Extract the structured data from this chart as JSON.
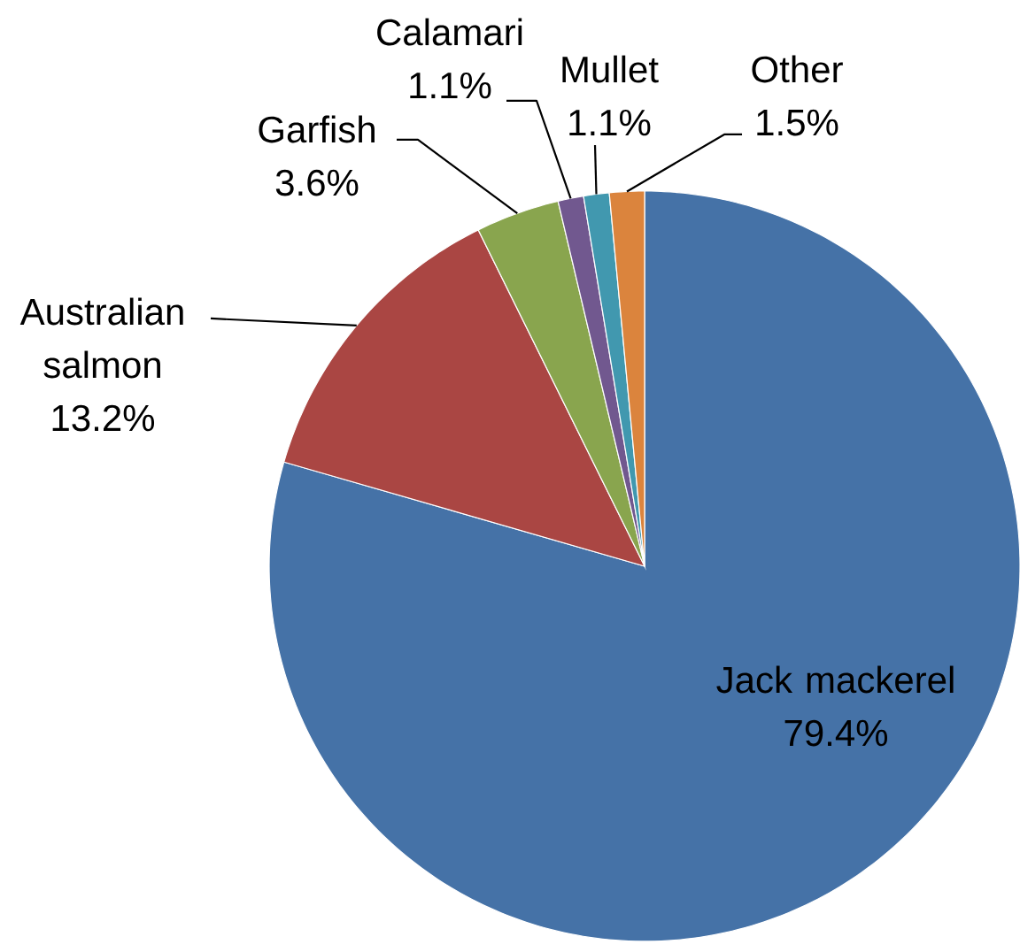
{
  "chart_data": {
    "type": "pie",
    "categories": [
      "Jack mackerel",
      "Australian salmon",
      "Garfish",
      "Calamari",
      "Mullet",
      "Other"
    ],
    "values": [
      79.4,
      13.2,
      3.6,
      1.1,
      1.1,
      1.5
    ],
    "colors": [
      "#4572a7",
      "#aa4643",
      "#89a54e",
      "#71588f",
      "#4198af",
      "#db843d"
    ],
    "value_labels": [
      "79.4%",
      "13.2%",
      "3.6%",
      "1.1%",
      "1.1%",
      "1.5%"
    ]
  }
}
